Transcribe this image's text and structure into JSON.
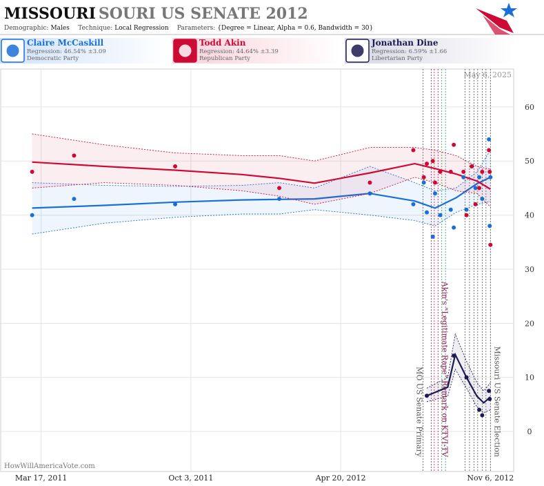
{
  "header": {
    "title_main": "MISSOURI",
    "title_rest": "SOURI US SENATE 2012",
    "subtitle": [
      [
        "Demographic:",
        "Males"
      ],
      [
        "Technique:",
        "Local Regression"
      ],
      [
        "Parameters:",
        "{Degree = Linear, Alpha = 0.6, Bandwidth = 30}"
      ]
    ]
  },
  "chart_data": {
    "type": "poll-regression",
    "date_stamp": "May 6, 2025",
    "watermark": "HowWillAmericaVote.com",
    "xlim": [
      "2011-01-22",
      "2012-12-07"
    ],
    "xticks": [
      {
        "value": "2011-03-17",
        "label": "Mar 17, 2011"
      },
      {
        "value": "2011-10-03",
        "label": "Oct 3, 2011"
      },
      {
        "value": "2012-04-20",
        "label": "Apr 20, 2012"
      },
      {
        "value": "2012-11-06",
        "label": "Nov 6, 2012"
      }
    ],
    "ylim": [
      -7.4,
      67
    ],
    "yticks": [
      0,
      10,
      20,
      30,
      40,
      50,
      60
    ],
    "grid": true,
    "poll_dates": [
      "2011-03-05",
      "2011-04-30",
      "2011-09-12",
      "2012-01-29",
      "2012-05-29",
      "2012-07-26",
      "2012-08-09",
      "2012-08-13",
      "2012-08-21",
      "2012-08-24",
      "2012-08-31",
      "2012-09-14",
      "2012-09-18",
      "2012-10-01",
      "2012-10-05",
      "2012-10-12",
      "2012-10-17",
      "2012-10-22",
      "2012-10-26",
      "2012-11-04",
      "2012-11-05",
      "2012-11-06"
    ],
    "candidates": [
      {
        "name": "Claire McCaskill",
        "regression": "Regression: 46.54% ±3.09",
        "party": "Democratic Party",
        "color": "#1a6fd6",
        "poll_values": [
          40,
          43,
          42,
          43,
          44,
          42,
          46,
          40.5,
          36,
          44,
          40,
          41,
          37.7,
          47,
          41,
          49,
          45,
          47,
          43,
          54,
          38,
          47
        ],
        "trend": {
          "x": [
            "2011-03-05",
            "2011-06-09",
            "2011-09-12",
            "2011-12-10",
            "2012-01-29",
            "2012-03-16",
            "2012-05-29",
            "2012-07-28",
            "2012-08-24",
            "2012-09-21",
            "2012-10-19",
            "2012-11-06"
          ],
          "values": [
            41.3,
            41.8,
            42.4,
            42.8,
            42.9,
            43.0,
            44.0,
            42.6,
            41.3,
            43.2,
            45.8,
            47.0
          ],
          "upper": [
            46,
            45.5,
            45.3,
            45.5,
            46,
            45,
            49,
            46,
            44.5,
            45,
            48,
            52
          ],
          "lower": [
            36.5,
            38.5,
            39.6,
            40.2,
            40.2,
            41,
            40,
            39,
            38,
            40.5,
            42,
            42.5
          ]
        }
      },
      {
        "name": "Todd Akin",
        "regression": "Regression: 44.64% ±3.39",
        "party": "Republican Party",
        "color": "#cc0a35",
        "poll_values": [
          48,
          51,
          49,
          45,
          46,
          52,
          47,
          49.5,
          50,
          46,
          48,
          48,
          53,
          48,
          40,
          49,
          42,
          45,
          48,
          52,
          48,
          34.5
        ],
        "trend": {
          "x": [
            "2011-03-05",
            "2011-06-09",
            "2011-09-12",
            "2011-12-10",
            "2012-01-29",
            "2012-03-16",
            "2012-05-29",
            "2012-07-28",
            "2012-08-24",
            "2012-09-21",
            "2012-10-19",
            "2012-11-06"
          ],
          "values": [
            49.8,
            49.0,
            48.3,
            47.5,
            46.8,
            45.9,
            47.8,
            49.5,
            48.6,
            47.6,
            46.3,
            44.8
          ],
          "upper": [
            55,
            53,
            51.5,
            51,
            51,
            50,
            52.5,
            52.5,
            52,
            51,
            49,
            48.5
          ],
          "lower": [
            45,
            46,
            45.5,
            44.5,
            43.5,
            42,
            44,
            47,
            46,
            44.5,
            44,
            41.5
          ]
        }
      },
      {
        "name": "Jonathan Dine",
        "regression": "Regression: 6.59% ±1.66",
        "party": "Libertarian Party",
        "color": "#1c1a4e",
        "poll_values": [
          null,
          null,
          null,
          null,
          null,
          null,
          null,
          6.6,
          null,
          null,
          null,
          null,
          14,
          null,
          10,
          null,
          null,
          4,
          3,
          7.5,
          6,
          null
        ],
        "trend": {
          "x": [
            "2012-08-13",
            "2012-09-10",
            "2012-09-20",
            "2012-10-05",
            "2012-10-19",
            "2012-10-28",
            "2012-11-06"
          ],
          "values": [
            6.6,
            8.2,
            14.2,
            10,
            6.5,
            5.3,
            6.4
          ],
          "upper": [
            8,
            10,
            18,
            13,
            9,
            7.5,
            9
          ],
          "lower": [
            5.5,
            6.5,
            11.5,
            8,
            4.5,
            3.5,
            4
          ]
        }
      }
    ],
    "events": {
      "x": [
        "2012-08-08",
        "2012-08-19",
        "2012-08-23",
        "2012-08-28",
        "2012-09-02",
        "2012-09-07",
        "2012-10-03",
        "2012-10-09",
        "2012-10-15",
        "2012-10-20",
        "2012-10-26",
        "2012-10-31",
        "2012-11-06"
      ],
      "labels": [
        "MO US Senate Primary",
        null,
        null,
        "Akin's \"Legitimate Rape\" Remark on KTVI-TV",
        null,
        null,
        null,
        null,
        null,
        null,
        null,
        null,
        "Missouri US Senate Election"
      ],
      "colors": [
        "#555555",
        "#8a2a8a",
        "#cc0a35",
        "#a0104a",
        "#2a9a4a",
        "#2a8a9a",
        "#555555",
        "#555555",
        "#555555",
        "#555555",
        "#555555",
        "#555555",
        "#555555"
      ]
    }
  }
}
